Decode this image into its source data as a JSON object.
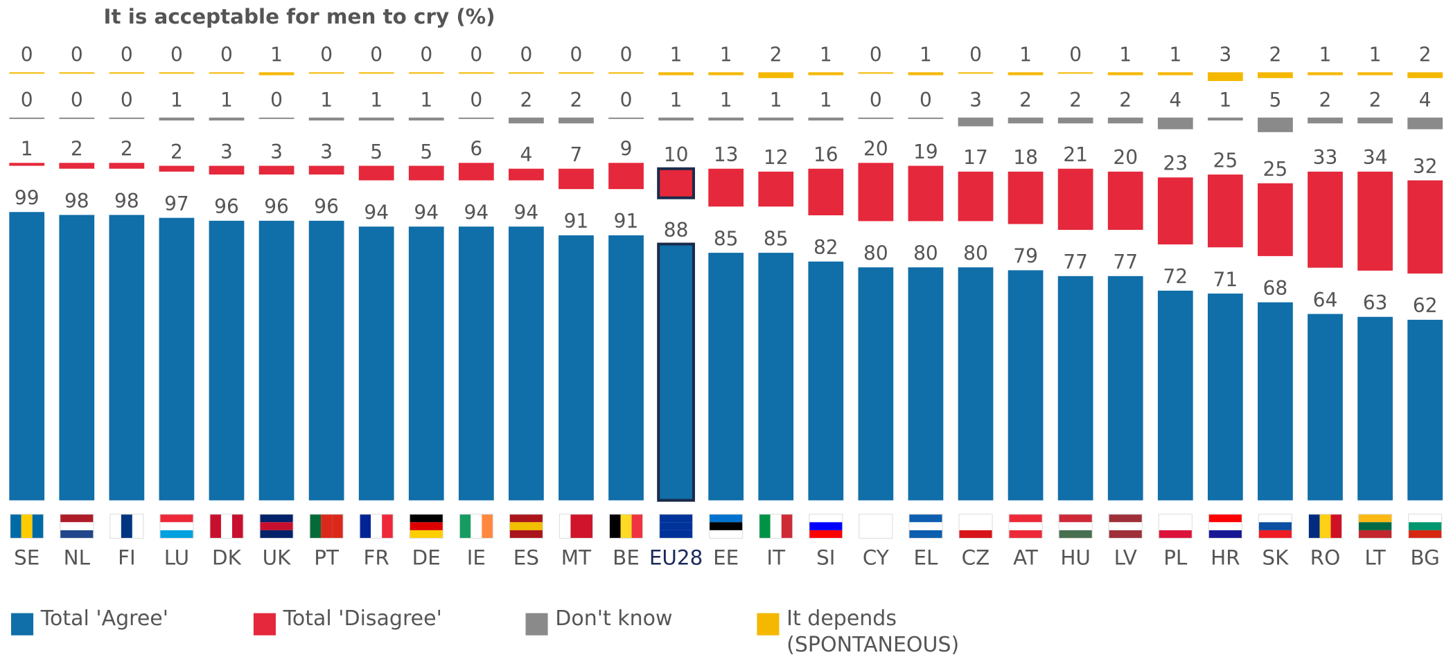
{
  "chart_data": {
    "type": "bar",
    "title": "It is acceptable for men to cry  (%)",
    "categories": [
      "SE",
      "NL",
      "FI",
      "LU",
      "DK",
      "UK",
      "PT",
      "FR",
      "DE",
      "IE",
      "ES",
      "MT",
      "BE",
      "EU28",
      "EE",
      "IT",
      "SI",
      "CY",
      "EL",
      "CZ",
      "AT",
      "HU",
      "LV",
      "PL",
      "HR",
      "SK",
      "RO",
      "LT",
      "BG"
    ],
    "series": [
      {
        "name": "Total 'Agree'",
        "color": "#106ea8",
        "values": [
          99,
          98,
          98,
          97,
          96,
          96,
          96,
          94,
          94,
          94,
          94,
          91,
          91,
          88,
          85,
          85,
          82,
          80,
          80,
          80,
          79,
          77,
          77,
          72,
          71,
          68,
          64,
          63,
          62
        ]
      },
      {
        "name": "Total 'Disagree'",
        "color": "#e5283b",
        "values": [
          1,
          2,
          2,
          2,
          3,
          3,
          3,
          5,
          5,
          6,
          4,
          7,
          9,
          10,
          13,
          12,
          16,
          20,
          19,
          17,
          18,
          21,
          20,
          23,
          25,
          25,
          33,
          34,
          32
        ]
      },
      {
        "name": "Don't know",
        "color": "#8a8a8a",
        "values": [
          0,
          0,
          0,
          1,
          1,
          0,
          1,
          1,
          1,
          0,
          2,
          2,
          0,
          1,
          1,
          1,
          1,
          0,
          0,
          3,
          2,
          2,
          2,
          4,
          1,
          5,
          2,
          2,
          4
        ]
      },
      {
        "name": "It depends (SPONTANEOUS)",
        "color": "#f5b800",
        "values": [
          0,
          0,
          0,
          0,
          0,
          1,
          0,
          0,
          0,
          0,
          0,
          0,
          0,
          1,
          1,
          2,
          1,
          0,
          1,
          0,
          1,
          0,
          1,
          1,
          3,
          2,
          1,
          1,
          2
        ]
      }
    ]
  }
}
